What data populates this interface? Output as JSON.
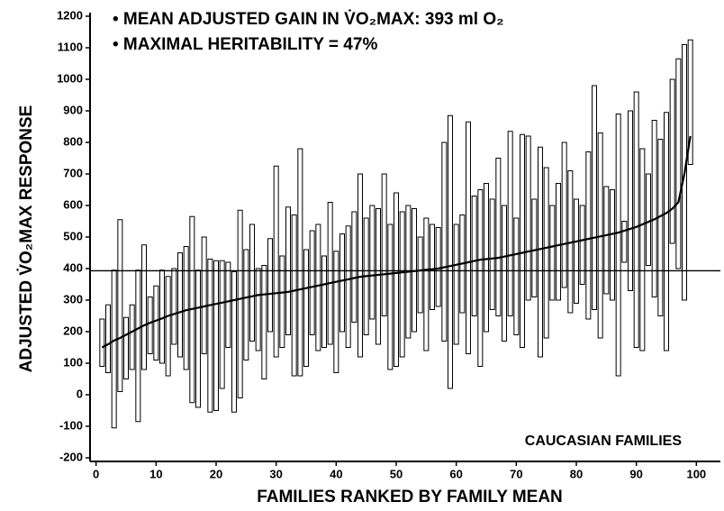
{
  "chart_data": {
    "type": "range",
    "annotations": [
      "• MEAN ADJUSTED GAIN IN V̇O₂MAX: 393 ml O₂",
      "• MAXIMAL HERITABILITY = 47%",
      "CAUCASIAN FAMILIES"
    ],
    "x_label": "FAMILIES RANKED BY FAMILY MEAN",
    "y_label": "ADJUSTED V̇O₂MAX RESPONSE",
    "reference_line": 393,
    "x": [
      1,
      2,
      3,
      4,
      5,
      6,
      7,
      8,
      9,
      10,
      11,
      12,
      13,
      14,
      15,
      16,
      17,
      18,
      19,
      20,
      21,
      22,
      23,
      24,
      25,
      26,
      27,
      28,
      29,
      30,
      31,
      32,
      33,
      34,
      35,
      36,
      37,
      38,
      39,
      40,
      41,
      42,
      43,
      44,
      45,
      46,
      47,
      48,
      49,
      50,
      51,
      52,
      53,
      54,
      55,
      56,
      57,
      58,
      59,
      60,
      61,
      62,
      63,
      64,
      65,
      66,
      67,
      68,
      69,
      70,
      71,
      72,
      73,
      74,
      75,
      76,
      77,
      78,
      79,
      80,
      81,
      82,
      83,
      84,
      85,
      86,
      87,
      88,
      89,
      90,
      91,
      92,
      93,
      94,
      95,
      96,
      97,
      98,
      99
    ],
    "mean": [
      150,
      160,
      172,
      180,
      190,
      200,
      210,
      220,
      228,
      235,
      242,
      250,
      256,
      262,
      268,
      272,
      276,
      280,
      284,
      288,
      292,
      296,
      300,
      304,
      308,
      312,
      316,
      318,
      320,
      322,
      324,
      326,
      330,
      334,
      338,
      342,
      346,
      350,
      354,
      358,
      362,
      366,
      370,
      374,
      376,
      378,
      380,
      382,
      384,
      386,
      388,
      390,
      392,
      394,
      396,
      398,
      400,
      404,
      408,
      412,
      416,
      420,
      424,
      428,
      430,
      432,
      434,
      438,
      442,
      446,
      450,
      454,
      458,
      462,
      466,
      470,
      474,
      478,
      482,
      486,
      490,
      494,
      498,
      502,
      506,
      510,
      514,
      520,
      526,
      532,
      540,
      548,
      556,
      566,
      576,
      590,
      610,
      700,
      820
    ],
    "high": [
      240,
      285,
      395,
      555,
      245,
      285,
      395,
      475,
      310,
      345,
      395,
      375,
      400,
      450,
      470,
      565,
      395,
      500,
      430,
      425,
      425,
      420,
      390,
      585,
      460,
      540,
      400,
      410,
      495,
      725,
      440,
      595,
      570,
      780,
      460,
      520,
      540,
      440,
      610,
      455,
      510,
      535,
      580,
      700,
      560,
      600,
      590,
      700,
      540,
      640,
      580,
      600,
      590,
      500,
      560,
      540,
      530,
      800,
      885,
      540,
      570,
      865,
      630,
      650,
      670,
      620,
      750,
      600,
      835,
      560,
      825,
      820,
      620,
      785,
      720,
      600,
      670,
      800,
      710,
      620,
      600,
      770,
      980,
      830,
      660,
      650,
      890,
      550,
      900,
      960,
      780,
      700,
      870,
      810,
      895,
      1000,
      1065,
      1110,
      1125
    ],
    "low": [
      90,
      70,
      -105,
      10,
      50,
      80,
      -85,
      80,
      130,
      110,
      100,
      60,
      160,
      120,
      80,
      -25,
      -40,
      130,
      -55,
      -50,
      20,
      150,
      -55,
      -10,
      110,
      170,
      140,
      50,
      200,
      120,
      150,
      190,
      60,
      60,
      90,
      190,
      140,
      150,
      160,
      70,
      200,
      150,
      230,
      120,
      190,
      240,
      160,
      250,
      80,
      90,
      120,
      180,
      200,
      260,
      140,
      270,
      280,
      170,
      20,
      160,
      260,
      130,
      250,
      90,
      200,
      270,
      250,
      170,
      250,
      190,
      150,
      300,
      310,
      120,
      180,
      300,
      300,
      340,
      260,
      290,
      350,
      240,
      270,
      180,
      320,
      300,
      60,
      420,
      330,
      150,
      140,
      410,
      310,
      250,
      140,
      480,
      400,
      300,
      730
    ],
    "xlim": [
      -1,
      104
    ],
    "ylim": [
      -200,
      1200
    ],
    "xticks": [
      0,
      10,
      20,
      30,
      40,
      50,
      60,
      70,
      80,
      90,
      100
    ],
    "yticks": [
      -200,
      -100,
      0,
      100,
      200,
      300,
      400,
      500,
      600,
      700,
      800,
      900,
      1000,
      1100,
      1200
    ],
    "color": "#000000"
  }
}
